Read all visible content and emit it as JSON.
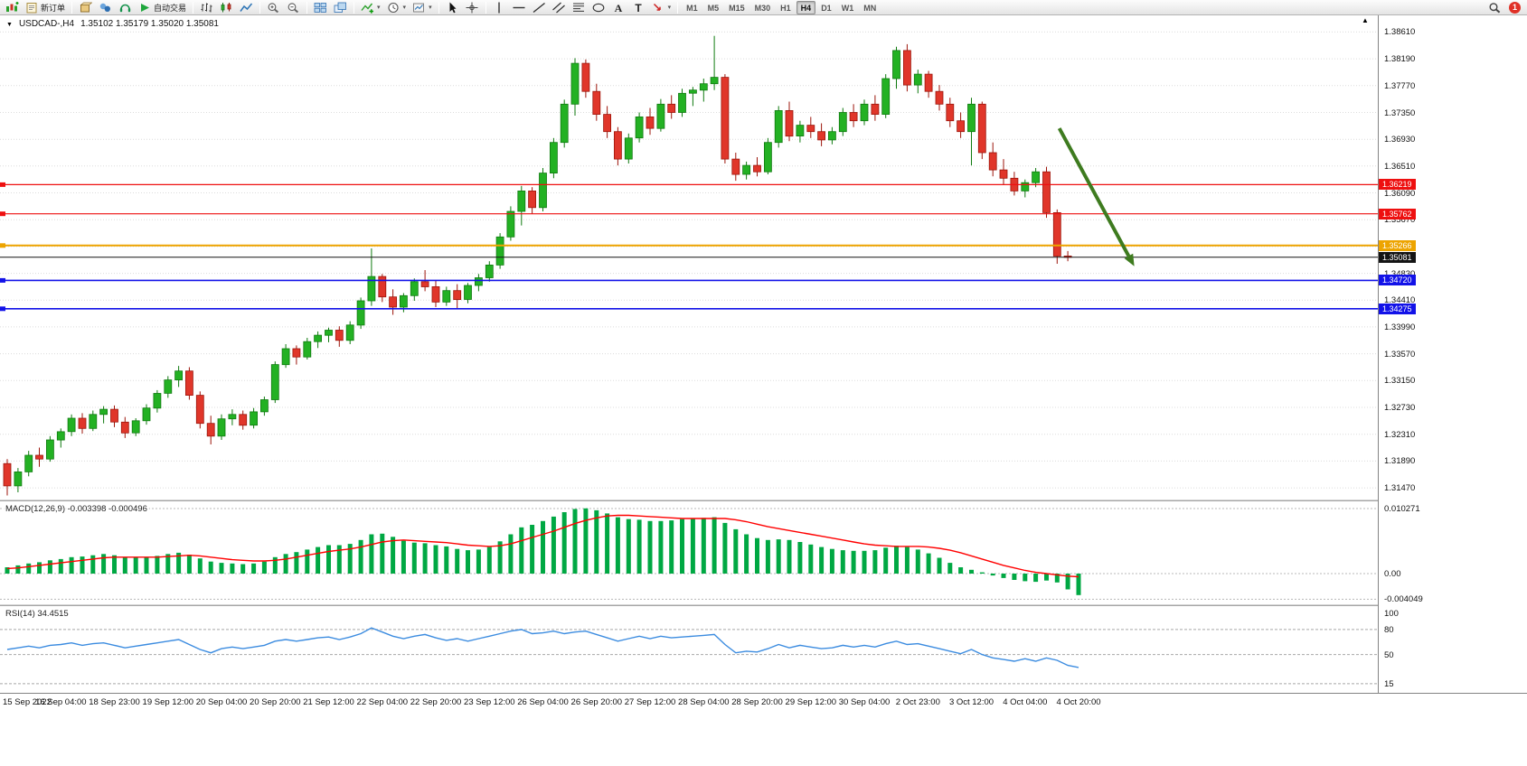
{
  "toolbar": {
    "groups": [
      {
        "items": [
          {
            "icon": "new-chart"
          },
          {
            "icon": "new-order",
            "label": "新订单"
          }
        ]
      },
      {
        "items": [
          {
            "icon": "market-watch"
          },
          {
            "icon": "navigator"
          },
          {
            "icon": "terminal"
          },
          {
            "icon": "autotrading",
            "label": "自动交易"
          }
        ]
      },
      {
        "items": [
          {
            "icon": "bars-chart"
          },
          {
            "icon": "candles-chart"
          },
          {
            "icon": "line-chart"
          }
        ]
      },
      {
        "items": [
          {
            "icon": "zoom-in"
          },
          {
            "icon": "zoom-out"
          }
        ]
      },
      {
        "items": [
          {
            "icon": "tile-windows"
          },
          {
            "icon": "arrange-windows"
          }
        ]
      },
      {
        "items": [
          {
            "icon": "indicators",
            "dropdown": true
          },
          {
            "icon": "periods",
            "dropdown": true
          },
          {
            "icon": "templates",
            "dropdown": true
          }
        ]
      },
      {
        "items": [
          {
            "icon": "cursor"
          },
          {
            "icon": "crosshair"
          }
        ]
      },
      {
        "items": [
          {
            "icon": "vertical-line"
          },
          {
            "icon": "horizontal-line"
          },
          {
            "icon": "trendline"
          },
          {
            "icon": "equidistant-channel"
          },
          {
            "icon": "fibonacci"
          },
          {
            "icon": "shapes"
          },
          {
            "icon": "text"
          },
          {
            "icon": "text-label"
          },
          {
            "icon": "arrows",
            "dropdown": true
          }
        ]
      }
    ],
    "timeframes": [
      "M1",
      "M5",
      "M15",
      "M30",
      "H1",
      "H4",
      "D1",
      "W1",
      "MN"
    ],
    "active_timeframe": "H4",
    "right_items": [
      {
        "icon": "search"
      },
      {
        "icon": "notification",
        "badge": "1"
      }
    ]
  },
  "chart": {
    "menu_marker": "▼",
    "scale_marker": "▲"
  },
  "chart_data": [
    {
      "type": "candlestick",
      "title": "USDCAD-,H4",
      "ohlc_text": "1.35102 1.35179 1.35020 1.35081",
      "up_color": "#23b123",
      "up_stroke": "#0f7a0f",
      "down_color": "#e0362a",
      "down_stroke": "#9c150b",
      "y_range": [
        1.314,
        1.388
      ],
      "y_ticks": [
        "1.38610",
        "1.38190",
        "1.37770",
        "1.37350",
        "1.36930",
        "1.36510",
        "1.36090",
        "1.35670",
        "1.35250",
        "1.34830",
        "1.34410",
        "1.33990",
        "1.33570",
        "1.33150",
        "1.32730",
        "1.32310",
        "1.31890",
        "1.31470"
      ],
      "x_labels": [
        "15 Sep 2022",
        "16 Sep 04:00",
        "18 Sep 23:00",
        "19 Sep 12:00",
        "20 Sep 04:00",
        "20 Sep 20:00",
        "21 Sep 12:00",
        "22 Sep 04:00",
        "22 Sep 20:00",
        "23 Sep 12:00",
        "26 Sep 04:00",
        "26 Sep 20:00",
        "27 Sep 12:00",
        "28 Sep 04:00",
        "28 Sep 20:00",
        "29 Sep 12:00",
        "30 Sep 04:00",
        "2 Oct 23:00",
        "3 Oct 12:00",
        "4 Oct 04:00",
        "4 Oct 20:00"
      ],
      "hlines": [
        {
          "price": 1.36219,
          "tag": "1.36219",
          "color": "#ee1010",
          "width": 1.2
        },
        {
          "price": 1.35762,
          "tag": "1.35762",
          "color": "#ee1010",
          "width": 1.2
        },
        {
          "price": 1.35266,
          "tag": "1.35266",
          "color": "#eda400",
          "width": 2
        },
        {
          "price": 1.3472,
          "tag": "1.34720",
          "color": "#1212e8",
          "width": 1.6
        },
        {
          "price": 1.34275,
          "tag": "1.34275",
          "color": "#1212e8",
          "width": 1.6
        }
      ],
      "current_price": {
        "price": 1.35081,
        "tag": "1.35081",
        "color": "#141414",
        "width": 1
      },
      "arrow": {
        "from_index": 98.2,
        "from_price": 1.371,
        "to_index": 105.2,
        "to_price": 1.3494,
        "color": "#3e7b1f",
        "width": 4
      },
      "candles": [
        [
          1.3185,
          1.3192,
          1.3135,
          1.315
        ],
        [
          1.315,
          1.3178,
          1.314,
          1.3172
        ],
        [
          1.3172,
          1.3205,
          1.3165,
          1.3198
        ],
        [
          1.3198,
          1.321,
          1.318,
          1.3192
        ],
        [
          1.3192,
          1.3228,
          1.3188,
          1.3222
        ],
        [
          1.3222,
          1.324,
          1.321,
          1.3235
        ],
        [
          1.3235,
          1.3262,
          1.3228,
          1.3256
        ],
        [
          1.3256,
          1.3264,
          1.3232,
          1.324
        ],
        [
          1.324,
          1.3268,
          1.3236,
          1.3262
        ],
        [
          1.3262,
          1.3275,
          1.3248,
          1.327
        ],
        [
          1.327,
          1.3276,
          1.3242,
          1.325
        ],
        [
          1.325,
          1.3258,
          1.3225,
          1.3233
        ],
        [
          1.3233,
          1.3256,
          1.3228,
          1.3252
        ],
        [
          1.3252,
          1.3278,
          1.3246,
          1.3272
        ],
        [
          1.3272,
          1.33,
          1.3265,
          1.3295
        ],
        [
          1.3295,
          1.3322,
          1.3288,
          1.3316
        ],
        [
          1.3316,
          1.3338,
          1.3305,
          1.333
        ],
        [
          1.333,
          1.3336,
          1.3285,
          1.3292
        ],
        [
          1.3292,
          1.3298,
          1.324,
          1.3248
        ],
        [
          1.3248,
          1.326,
          1.3215,
          1.3228
        ],
        [
          1.3228,
          1.3262,
          1.3222,
          1.3255
        ],
        [
          1.3255,
          1.327,
          1.3245,
          1.3262
        ],
        [
          1.3262,
          1.3268,
          1.3238,
          1.3245
        ],
        [
          1.3245,
          1.3272,
          1.324,
          1.3266
        ],
        [
          1.3266,
          1.329,
          1.326,
          1.3285
        ],
        [
          1.3285,
          1.3345,
          1.328,
          1.334
        ],
        [
          1.334,
          1.3372,
          1.3335,
          1.3365
        ],
        [
          1.3365,
          1.337,
          1.334,
          1.3352
        ],
        [
          1.3352,
          1.3382,
          1.3348,
          1.3376
        ],
        [
          1.3376,
          1.3392,
          1.3366,
          1.3386
        ],
        [
          1.3386,
          1.3398,
          1.3375,
          1.3394
        ],
        [
          1.3394,
          1.34,
          1.3368,
          1.3378
        ],
        [
          1.3378,
          1.3408,
          1.3372,
          1.3402
        ],
        [
          1.3402,
          1.3445,
          1.3396,
          1.344
        ],
        [
          1.344,
          1.3522,
          1.3432,
          1.3478
        ],
        [
          1.3478,
          1.3482,
          1.3438,
          1.3446
        ],
        [
          1.3446,
          1.3458,
          1.3418,
          1.343
        ],
        [
          1.343,
          1.3452,
          1.3422,
          1.3448
        ],
        [
          1.3448,
          1.3475,
          1.344,
          1.347
        ],
        [
          1.347,
          1.3488,
          1.3455,
          1.3462
        ],
        [
          1.3462,
          1.3472,
          1.343,
          1.3438
        ],
        [
          1.3438,
          1.3462,
          1.3432,
          1.3456
        ],
        [
          1.3456,
          1.3466,
          1.3428,
          1.3442
        ],
        [
          1.3442,
          1.3468,
          1.3436,
          1.3464
        ],
        [
          1.3464,
          1.3482,
          1.3455,
          1.3476
        ],
        [
          1.3476,
          1.3502,
          1.347,
          1.3496
        ],
        [
          1.3496,
          1.3546,
          1.349,
          1.354
        ],
        [
          1.354,
          1.3588,
          1.3534,
          1.358
        ],
        [
          1.358,
          1.362,
          1.3558,
          1.3612
        ],
        [
          1.3612,
          1.3618,
          1.3576,
          1.3586
        ],
        [
          1.3586,
          1.3648,
          1.358,
          1.364
        ],
        [
          1.364,
          1.3695,
          1.3632,
          1.3688
        ],
        [
          1.3688,
          1.3755,
          1.368,
          1.3748
        ],
        [
          1.3748,
          1.382,
          1.373,
          1.3812
        ],
        [
          1.3812,
          1.3818,
          1.3758,
          1.3768
        ],
        [
          1.3768,
          1.378,
          1.3722,
          1.3732
        ],
        [
          1.3732,
          1.3745,
          1.3695,
          1.3705
        ],
        [
          1.3705,
          1.3712,
          1.3652,
          1.3662
        ],
        [
          1.3662,
          1.3702,
          1.3655,
          1.3695
        ],
        [
          1.3695,
          1.3735,
          1.3688,
          1.3728
        ],
        [
          1.3728,
          1.3742,
          1.37,
          1.371
        ],
        [
          1.371,
          1.3756,
          1.3705,
          1.3748
        ],
        [
          1.3748,
          1.3762,
          1.3725,
          1.3735
        ],
        [
          1.3735,
          1.3772,
          1.3728,
          1.3765
        ],
        [
          1.3765,
          1.3775,
          1.3745,
          1.377
        ],
        [
          1.377,
          1.3788,
          1.3752,
          1.378
        ],
        [
          1.378,
          1.3855,
          1.377,
          1.379
        ],
        [
          1.379,
          1.3795,
          1.3655,
          1.3662
        ],
        [
          1.3662,
          1.3672,
          1.3628,
          1.3638
        ],
        [
          1.3638,
          1.3658,
          1.363,
          1.3652
        ],
        [
          1.3652,
          1.3665,
          1.3635,
          1.3642
        ],
        [
          1.3642,
          1.3695,
          1.3638,
          1.3688
        ],
        [
          1.3688,
          1.3745,
          1.368,
          1.3738
        ],
        [
          1.3738,
          1.3752,
          1.369,
          1.3698
        ],
        [
          1.3698,
          1.3722,
          1.3688,
          1.3715
        ],
        [
          1.3715,
          1.3728,
          1.3695,
          1.3705
        ],
        [
          1.3705,
          1.3718,
          1.3682,
          1.3692
        ],
        [
          1.3692,
          1.3712,
          1.3685,
          1.3705
        ],
        [
          1.3705,
          1.3742,
          1.3698,
          1.3735
        ],
        [
          1.3735,
          1.3748,
          1.3712,
          1.3722
        ],
        [
          1.3722,
          1.3755,
          1.3715,
          1.3748
        ],
        [
          1.3748,
          1.3762,
          1.3722,
          1.3732
        ],
        [
          1.3732,
          1.3795,
          1.3726,
          1.3788
        ],
        [
          1.3788,
          1.3838,
          1.3772,
          1.3832
        ],
        [
          1.3832,
          1.3842,
          1.3768,
          1.3778
        ],
        [
          1.3778,
          1.3802,
          1.3765,
          1.3795
        ],
        [
          1.3795,
          1.38,
          1.3758,
          1.3768
        ],
        [
          1.3768,
          1.3778,
          1.3738,
          1.3748
        ],
        [
          1.3748,
          1.3758,
          1.3712,
          1.3722
        ],
        [
          1.3722,
          1.3735,
          1.3695,
          1.3705
        ],
        [
          1.3705,
          1.3758,
          1.3652,
          1.3748
        ],
        [
          1.3748,
          1.3752,
          1.3662,
          1.3672
        ],
        [
          1.3672,
          1.3688,
          1.3635,
          1.3645
        ],
        [
          1.3645,
          1.3662,
          1.3622,
          1.3632
        ],
        [
          1.3632,
          1.3642,
          1.3605,
          1.3612
        ],
        [
          1.3612,
          1.363,
          1.3602,
          1.3625
        ],
        [
          1.3625,
          1.3648,
          1.3618,
          1.3642
        ],
        [
          1.3642,
          1.365,
          1.357,
          1.3578
        ],
        [
          1.3578,
          1.3583,
          1.3498,
          1.351
        ],
        [
          1.35102,
          1.35179,
          1.3502,
          1.35081
        ]
      ]
    },
    {
      "type": "bar",
      "name": "MACD",
      "label": "MACD(12,26,9) -0.003398 -0.000496",
      "histogram_color": "#00a843",
      "signal_color": "#ff0000",
      "y_range": [
        -0.00485,
        0.01127
      ],
      "y_ticks": [
        "0.010271",
        "0.00",
        "-0.004049"
      ],
      "y_tick_values": [
        0.010271,
        0,
        -0.004049
      ],
      "histogram": [
        0.001,
        0.0013,
        0.0016,
        0.0018,
        0.0021,
        0.0023,
        0.0026,
        0.0027,
        0.0029,
        0.0031,
        0.0029,
        0.0026,
        0.0025,
        0.0026,
        0.0028,
        0.0031,
        0.0033,
        0.003,
        0.0024,
        0.0019,
        0.0017,
        0.0016,
        0.0015,
        0.0016,
        0.0019,
        0.0026,
        0.0031,
        0.0034,
        0.0038,
        0.0042,
        0.0045,
        0.0045,
        0.0047,
        0.0053,
        0.0062,
        0.0063,
        0.0058,
        0.0052,
        0.0049,
        0.0048,
        0.0045,
        0.0043,
        0.0039,
        0.0037,
        0.0038,
        0.0042,
        0.0051,
        0.0062,
        0.0073,
        0.0077,
        0.0083,
        0.009,
        0.0097,
        0.0102,
        0.0103,
        0.01,
        0.0095,
        0.0089,
        0.0086,
        0.0085,
        0.0083,
        0.0083,
        0.0084,
        0.0086,
        0.0087,
        0.0088,
        0.0089,
        0.008,
        0.007,
        0.0062,
        0.0056,
        0.0053,
        0.0054,
        0.0053,
        0.005,
        0.0046,
        0.0042,
        0.0039,
        0.0037,
        0.0036,
        0.0036,
        0.0037,
        0.0041,
        0.0044,
        0.0042,
        0.0038,
        0.0032,
        0.0025,
        0.0017,
        0.001,
        0.0006,
        0.0002,
        -0.0003,
        -0.0007,
        -0.001,
        -0.0012,
        -0.0013,
        -0.0011,
        -0.0014,
        -0.0025,
        -0.0034
      ],
      "signal": [
        0.0008,
        0.0009,
        0.0011,
        0.0013,
        0.0015,
        0.0017,
        0.0019,
        0.0021,
        0.0023,
        0.0025,
        0.0026,
        0.0026,
        0.0026,
        0.0026,
        0.0026,
        0.0027,
        0.0028,
        0.0029,
        0.0028,
        0.0026,
        0.0024,
        0.0022,
        0.0021,
        0.002,
        0.002,
        0.0021,
        0.0023,
        0.0026,
        0.0029,
        0.0032,
        0.0035,
        0.0037,
        0.0039,
        0.0042,
        0.0046,
        0.005,
        0.0052,
        0.0053,
        0.0052,
        0.0051,
        0.005,
        0.0049,
        0.0047,
        0.0045,
        0.0044,
        0.0043,
        0.0044,
        0.0047,
        0.0052,
        0.0057,
        0.0062,
        0.0067,
        0.0073,
        0.0079,
        0.0084,
        0.0088,
        0.0091,
        0.0092,
        0.0092,
        0.0091,
        0.009,
        0.0089,
        0.0088,
        0.0087,
        0.0087,
        0.0087,
        0.0087,
        0.0087,
        0.0085,
        0.0082,
        0.0078,
        0.0074,
        0.0071,
        0.0068,
        0.0065,
        0.0062,
        0.0059,
        0.0056,
        0.0053,
        0.005,
        0.0047,
        0.0045,
        0.0044,
        0.0043,
        0.0043,
        0.0043,
        0.0042,
        0.004,
        0.0037,
        0.0033,
        0.0028,
        0.0023,
        0.0018,
        0.0013,
        0.0009,
        0.0005,
        0.0002,
        0.0,
        -0.0002,
        -0.0004,
        -0.0005
      ]
    },
    {
      "type": "line",
      "name": "RSI",
      "label": "RSI(14) 34.4515",
      "line_color": "#3c8ce0",
      "level_color": "#a8a8a8",
      "y_range": [
        4,
        107
      ],
      "y_ticks": [
        "100",
        "80",
        "50",
        "15"
      ],
      "y_tick_values": [
        100,
        80,
        50,
        15
      ],
      "levels": [
        80,
        50,
        15
      ],
      "values": [
        56,
        58,
        60,
        58,
        61,
        62,
        64,
        61,
        63,
        64,
        61,
        58,
        60,
        62,
        64,
        66,
        68,
        62,
        56,
        52,
        57,
        59,
        57,
        59,
        61,
        66,
        68,
        66,
        68,
        70,
        71,
        68,
        71,
        75,
        82,
        77,
        72,
        69,
        72,
        74,
        70,
        67,
        69,
        66,
        69,
        72,
        75,
        78,
        80,
        75,
        76,
        78,
        75,
        77,
        78,
        74,
        70,
        66,
        69,
        72,
        69,
        72,
        70,
        71,
        72,
        73,
        74,
        62,
        52,
        54,
        53,
        57,
        62,
        58,
        61,
        59,
        57,
        58,
        61,
        59,
        61,
        59,
        63,
        66,
        62,
        63,
        60,
        57,
        54,
        51,
        56,
        50,
        46,
        44,
        42,
        45,
        42,
        46,
        43,
        37,
        34.45
      ]
    }
  ]
}
